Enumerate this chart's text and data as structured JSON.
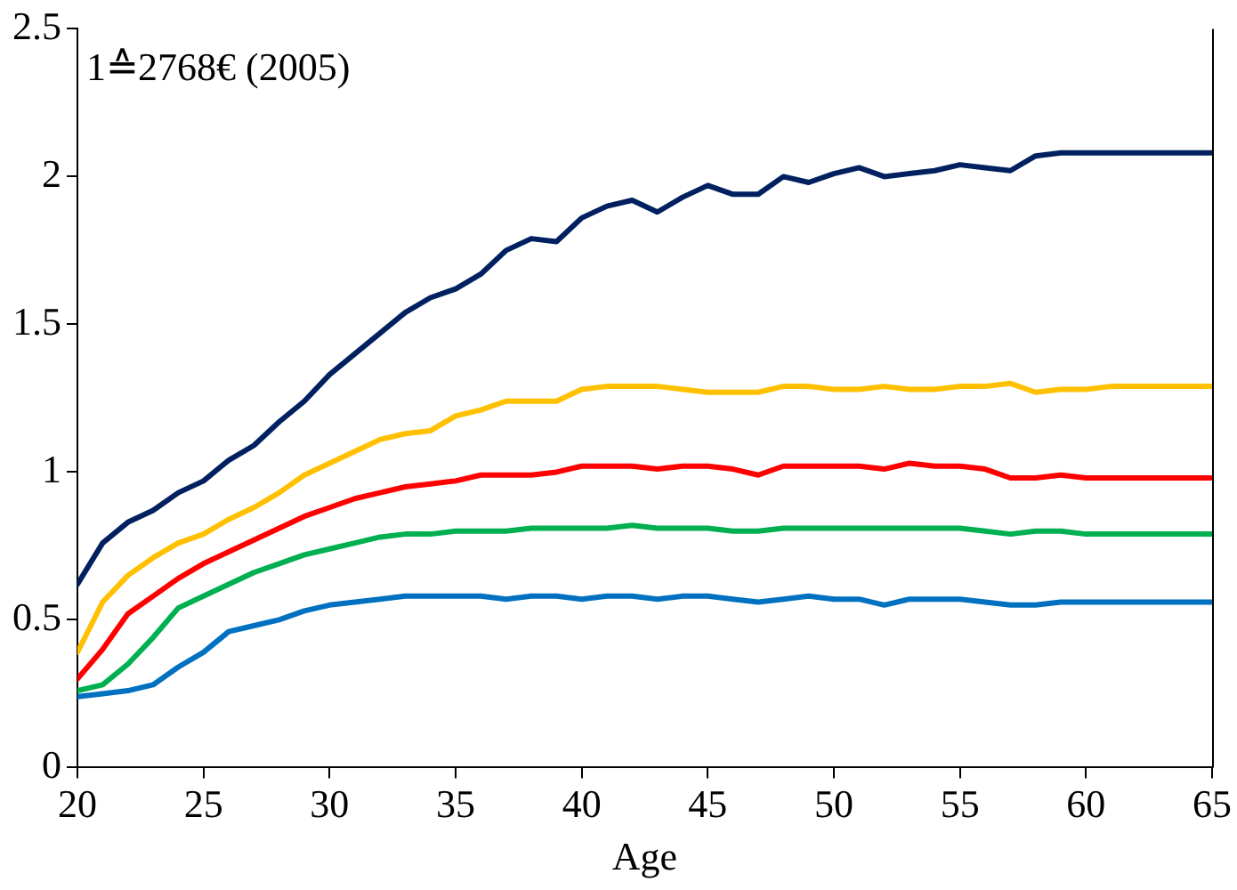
{
  "chart_data": {
    "type": "line",
    "xlabel": "Age",
    "annotations": [
      "1≙2768€ (2005)"
    ],
    "x": [
      20,
      21,
      22,
      23,
      24,
      25,
      26,
      27,
      28,
      29,
      30,
      31,
      32,
      33,
      34,
      35,
      36,
      37,
      38,
      39,
      40,
      41,
      42,
      43,
      44,
      45,
      46,
      47,
      48,
      49,
      50,
      51,
      52,
      53,
      54,
      55,
      56,
      57,
      58,
      59,
      60,
      61,
      62,
      63,
      64,
      65
    ],
    "xlim": [
      20,
      65
    ],
    "xticks": [
      20,
      25,
      30,
      35,
      40,
      45,
      50,
      55,
      60,
      65
    ],
    "ylim": [
      0,
      2.5
    ],
    "yticks": [
      0,
      0.5,
      1,
      1.5,
      2,
      2.5
    ],
    "grid": false,
    "legend": false,
    "marker": "none",
    "line_style": "solid",
    "series": [
      {
        "color": "#002060",
        "values": [
          0.62,
          0.76,
          0.83,
          0.87,
          0.93,
          0.97,
          1.04,
          1.09,
          1.17,
          1.24,
          1.33,
          1.4,
          1.47,
          1.54,
          1.59,
          1.62,
          1.67,
          1.75,
          1.79,
          1.78,
          1.86,
          1.9,
          1.92,
          1.88,
          1.93,
          1.97,
          1.94,
          1.94,
          2.0,
          1.98,
          2.01,
          2.03,
          2.0,
          2.01,
          2.02,
          2.04,
          2.03,
          2.02,
          2.07,
          2.08,
          2.08,
          2.08,
          2.08,
          2.08,
          2.08,
          2.08
        ]
      },
      {
        "color": "#ffc000",
        "values": [
          0.39,
          0.56,
          0.65,
          0.71,
          0.76,
          0.79,
          0.84,
          0.88,
          0.93,
          0.99,
          1.03,
          1.07,
          1.11,
          1.13,
          1.14,
          1.19,
          1.21,
          1.24,
          1.24,
          1.24,
          1.28,
          1.29,
          1.29,
          1.29,
          1.28,
          1.27,
          1.27,
          1.27,
          1.29,
          1.29,
          1.28,
          1.28,
          1.29,
          1.28,
          1.28,
          1.29,
          1.29,
          1.3,
          1.27,
          1.28,
          1.28,
          1.29,
          1.29,
          1.29,
          1.29,
          1.29
        ]
      },
      {
        "color": "#ff0000",
        "values": [
          0.3,
          0.4,
          0.52,
          0.58,
          0.64,
          0.69,
          0.73,
          0.77,
          0.81,
          0.85,
          0.88,
          0.91,
          0.93,
          0.95,
          0.96,
          0.97,
          0.99,
          0.99,
          0.99,
          1.0,
          1.02,
          1.02,
          1.02,
          1.01,
          1.02,
          1.02,
          1.01,
          0.99,
          1.02,
          1.02,
          1.02,
          1.02,
          1.01,
          1.03,
          1.02,
          1.02,
          1.01,
          0.98,
          0.98,
          0.99,
          0.98,
          0.98,
          0.98,
          0.98,
          0.98,
          0.98
        ]
      },
      {
        "color": "#00b050",
        "values": [
          0.26,
          0.28,
          0.35,
          0.44,
          0.54,
          0.58,
          0.62,
          0.66,
          0.69,
          0.72,
          0.74,
          0.76,
          0.78,
          0.79,
          0.79,
          0.8,
          0.8,
          0.8,
          0.81,
          0.81,
          0.81,
          0.81,
          0.82,
          0.81,
          0.81,
          0.81,
          0.8,
          0.8,
          0.81,
          0.81,
          0.81,
          0.81,
          0.81,
          0.81,
          0.81,
          0.81,
          0.8,
          0.79,
          0.8,
          0.8,
          0.79,
          0.79,
          0.79,
          0.79,
          0.79,
          0.79
        ]
      },
      {
        "color": "#0070c0",
        "values": [
          0.24,
          0.25,
          0.26,
          0.28,
          0.34,
          0.39,
          0.46,
          0.48,
          0.5,
          0.53,
          0.55,
          0.56,
          0.57,
          0.58,
          0.58,
          0.58,
          0.58,
          0.57,
          0.58,
          0.58,
          0.57,
          0.58,
          0.58,
          0.57,
          0.58,
          0.58,
          0.57,
          0.56,
          0.57,
          0.58,
          0.57,
          0.57,
          0.55,
          0.57,
          0.57,
          0.57,
          0.56,
          0.55,
          0.55,
          0.56,
          0.56,
          0.56,
          0.56,
          0.56,
          0.56,
          0.56
        ]
      }
    ]
  }
}
